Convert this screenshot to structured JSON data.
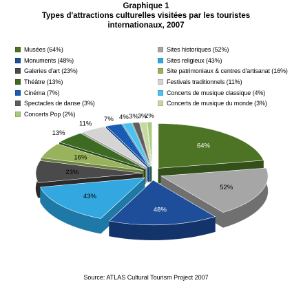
{
  "title_lines": [
    "Graphique 1",
    "Types d'attractions culturelles visitées par les touristes",
    "internationaux, 2007"
  ],
  "source": "Source: ATLAS Cultural Tourism Project 2007",
  "chart_data": {
    "type": "pie",
    "title": "Graphique 1 Types d'attractions culturelles visitées par les touristes internationaux, 2007",
    "legend_position": "top",
    "three_d": true,
    "exploded": true,
    "slices": [
      {
        "label": "Musées (64%)",
        "value": 64,
        "data_label": "64%",
        "color": "#4d7325",
        "side": "#34501a",
        "text_color": "#ffffff"
      },
      {
        "label": "Sites historiques (52%)",
        "value": 52,
        "data_label": "52%",
        "color": "#a6a6a6",
        "side": "#707070",
        "text_color": "#000000"
      },
      {
        "label": "Monuments (48%)",
        "value": 48,
        "data_label": "48%",
        "color": "#1e4d99",
        "side": "#13346b",
        "text_color": "#ffffff"
      },
      {
        "label": "Sites religieux (43%)",
        "value": 43,
        "data_label": "43%",
        "color": "#33a8e0",
        "side": "#1e79a6",
        "text_color": "#000000"
      },
      {
        "label": "Galeries d'art (23%)",
        "value": 23,
        "data_label": "23%",
        "color": "#4a4a4a",
        "side": "#2b2b2b",
        "text_color": "#000000"
      },
      {
        "label": "Site patrimoniaux & centres d'artisanat (16%)",
        "value": 16,
        "data_label": "16%",
        "color": "#99b35c",
        "side": "#6c8040",
        "text_color": "#000000"
      },
      {
        "label": "Théâtre (13%)",
        "value": 13,
        "data_label": "13%",
        "color": "#3d6b24",
        "side": "#294a18",
        "text_color": "#000000"
      },
      {
        "label": "Festivals traditionnels (11%)",
        "value": 11,
        "data_label": "11%",
        "color": "#d4d4d4",
        "side": "#a0a0a0",
        "text_color": "#000000"
      },
      {
        "label": "Cinéma (7%)",
        "value": 7,
        "data_label": "7%",
        "color": "#1a5cb3",
        "side": "#123f7d",
        "text_color": "#000000"
      },
      {
        "label": "Concerts de musique classique (4%)",
        "value": 4,
        "data_label": "4%",
        "color": "#4cc2ef",
        "side": "#2d8ab0",
        "text_color": "#000000"
      },
      {
        "label": "Spectacles de danse (3%)",
        "value": 3,
        "data_label": "3%",
        "color": "#5e5e5e",
        "side": "#3a3a3a",
        "text_color": "#000000"
      },
      {
        "label": "Concerts de musique du monde (3%)",
        "value": 3,
        "data_label": "3%",
        "color": "#c8d9a0",
        "side": "#8fa06a",
        "text_color": "#000000"
      },
      {
        "label": "Concerts Pop (2%)",
        "value": 2,
        "data_label": "2%",
        "color": "#a8cc7e",
        "side": "#7a9a58",
        "text_color": "#000000"
      }
    ]
  }
}
